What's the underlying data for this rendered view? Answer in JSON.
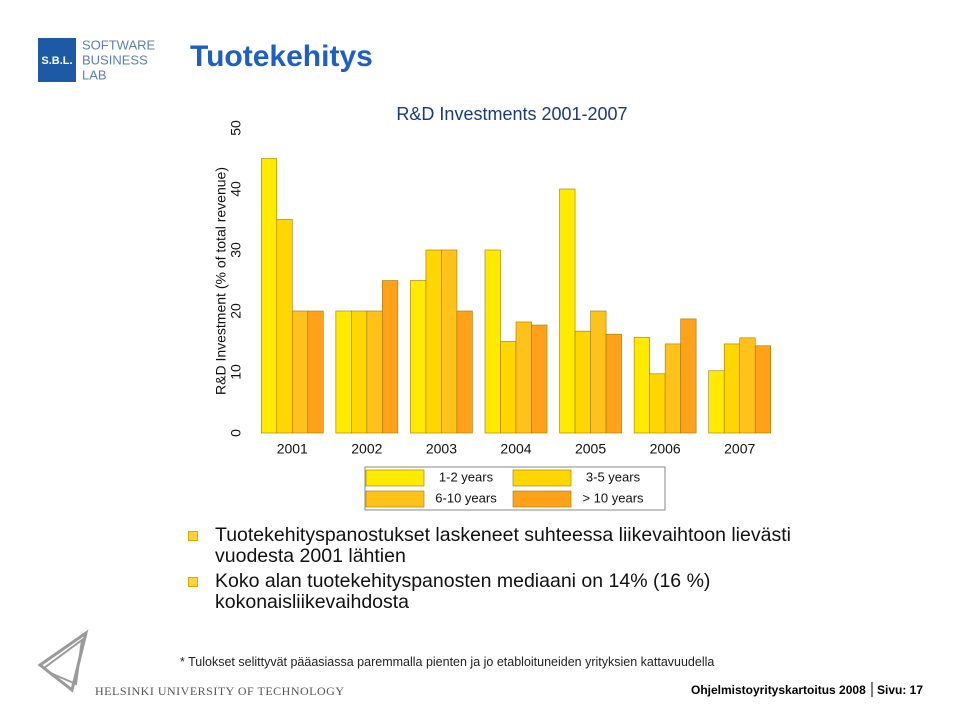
{
  "header": {
    "title": "Tuotekehitys",
    "logo_mark": "S.B.L.",
    "logo_words": [
      "SOFTWARE",
      "BUSINESS",
      "LAB"
    ]
  },
  "chart_data": {
    "type": "bar",
    "title": "R&D Investments 2001-2007",
    "y_label": "R&D Investment (% of total revenue)",
    "categories": [
      "2001",
      "2002",
      "2003",
      "2004",
      "2005",
      "2006",
      "2007"
    ],
    "series": [
      {
        "name": "1-2 years",
        "color": "#ffea00",
        "values": [
          45,
          20,
          25,
          30,
          40,
          15.7,
          10.2
        ]
      },
      {
        "name": "3-5 years",
        "color": "#ffd600",
        "values": [
          35,
          20,
          30,
          15,
          16.7,
          9.7,
          14.6
        ]
      },
      {
        "name": "6-10 years",
        "color": "#ffc21a",
        "values": [
          20,
          20,
          30,
          18.2,
          20,
          14.6,
          15.6
        ]
      },
      {
        "name": "> 10 years",
        "color": "#ffa21a",
        "values": [
          20,
          25,
          20,
          17.7,
          16.2,
          18.7,
          14.3
        ]
      }
    ],
    "ylim": [
      0,
      50
    ],
    "yticks": [
      0,
      10,
      20,
      30,
      40,
      50
    ],
    "legend": "bottom"
  },
  "bullets": [
    "Tuotekehityspanostukset laskeneet suhteessa liikevaihtoon lievästi vuodesta 2001 lähtien",
    "Koko alan tuotekehityspanosten mediaani on 14% (16 %) kokonaisliikevaihdosta"
  ],
  "footnote": "* Tulokset selittyvät pääasiassa paremmalla pienten ja jo etabloituneiden yrityksien kattavuudella",
  "footer": {
    "university": "HELSINKI UNIVERSITY OF TECHNOLOGY",
    "document": "Ohjelmistoyrityskartoitus 2008",
    "page": "Sivu: 17"
  }
}
